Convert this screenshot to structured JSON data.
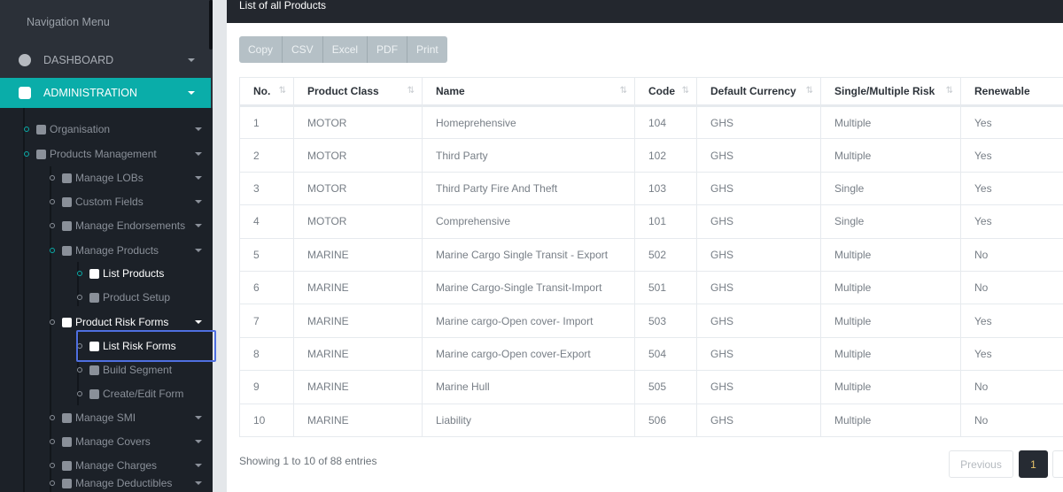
{
  "sidebar": {
    "title": "Navigation Menu",
    "top_items": [
      {
        "label": "DASHBOARD",
        "icon": "half-circle-icon"
      },
      {
        "label": "ADMINISTRATION",
        "icon": "gear-icon",
        "active": true
      }
    ],
    "items": [
      {
        "label": "Organisation",
        "icon": "database-icon"
      },
      {
        "label": "Products Management",
        "icon": "p-circle-icon"
      },
      {
        "label": "Manage LOBs",
        "icon": "location-arrow-icon"
      },
      {
        "label": "Custom Fields",
        "icon": "lock-icon"
      },
      {
        "label": "Manage Endorsements",
        "icon": "archive-icon"
      },
      {
        "label": "Manage Products",
        "icon": "p-circle-icon"
      },
      {
        "label": "List Products",
        "icon": "list-icon"
      },
      {
        "label": "Product Setup",
        "icon": "setup-icon"
      },
      {
        "label": "Product Risk Forms",
        "icon": "sitemap-icon"
      },
      {
        "label": "List Risk Forms",
        "icon": "list-icon"
      },
      {
        "label": "Build Segment",
        "icon": "half-circle-icon"
      },
      {
        "label": "Create/Edit Form",
        "icon": "database-icon"
      },
      {
        "label": "Manage SMI",
        "icon": "database-icon"
      },
      {
        "label": "Manage Covers",
        "icon": "card-icon"
      },
      {
        "label": "Manage Charges",
        "icon": "database-icon"
      },
      {
        "label": "Manage Deductibles",
        "icon": "database-icon"
      }
    ]
  },
  "panel": {
    "title": "List of all Products"
  },
  "export_buttons": [
    "Copy",
    "CSV",
    "Excel",
    "PDF",
    "Print"
  ],
  "table": {
    "headers": [
      "No.",
      "Product Class",
      "Name",
      "Code",
      "Default Currency",
      "Single/Multiple Risk",
      "Renewable"
    ],
    "rows": [
      [
        "1",
        "MOTOR",
        "Homeprehensive",
        "104",
        "GHS",
        "Multiple",
        "Yes"
      ],
      [
        "2",
        "MOTOR",
        "Third Party",
        "102",
        "GHS",
        "Multiple",
        "Yes"
      ],
      [
        "3",
        "MOTOR",
        "Third Party Fire And Theft",
        "103",
        "GHS",
        "Single",
        "Yes"
      ],
      [
        "4",
        "MOTOR",
        "Comprehensive",
        "101",
        "GHS",
        "Single",
        "Yes"
      ],
      [
        "5",
        "MARINE",
        "Marine Cargo Single Transit - Export",
        "502",
        "GHS",
        "Multiple",
        "No"
      ],
      [
        "6",
        "MARINE",
        "Marine Cargo-Single Transit-Import",
        "501",
        "GHS",
        "Multiple",
        "No"
      ],
      [
        "7",
        "MARINE",
        "Marine cargo-Open cover- Import",
        "503",
        "GHS",
        "Multiple",
        "Yes"
      ],
      [
        "8",
        "MARINE",
        "Marine cargo-Open cover-Export",
        "504",
        "GHS",
        "Multiple",
        "Yes"
      ],
      [
        "9",
        "MARINE",
        "Marine Hull",
        "505",
        "GHS",
        "Multiple",
        "No"
      ],
      [
        "10",
        "MARINE",
        "Liability",
        "506",
        "GHS",
        "Multiple",
        "No"
      ]
    ]
  },
  "footer": {
    "info": "Showing 1 to 10 of 88 entries",
    "previous": "Previous",
    "current_page": "1"
  },
  "colors": {
    "accent": "#0aada9",
    "sidebar": "#1c2128",
    "header": "#23272e"
  }
}
